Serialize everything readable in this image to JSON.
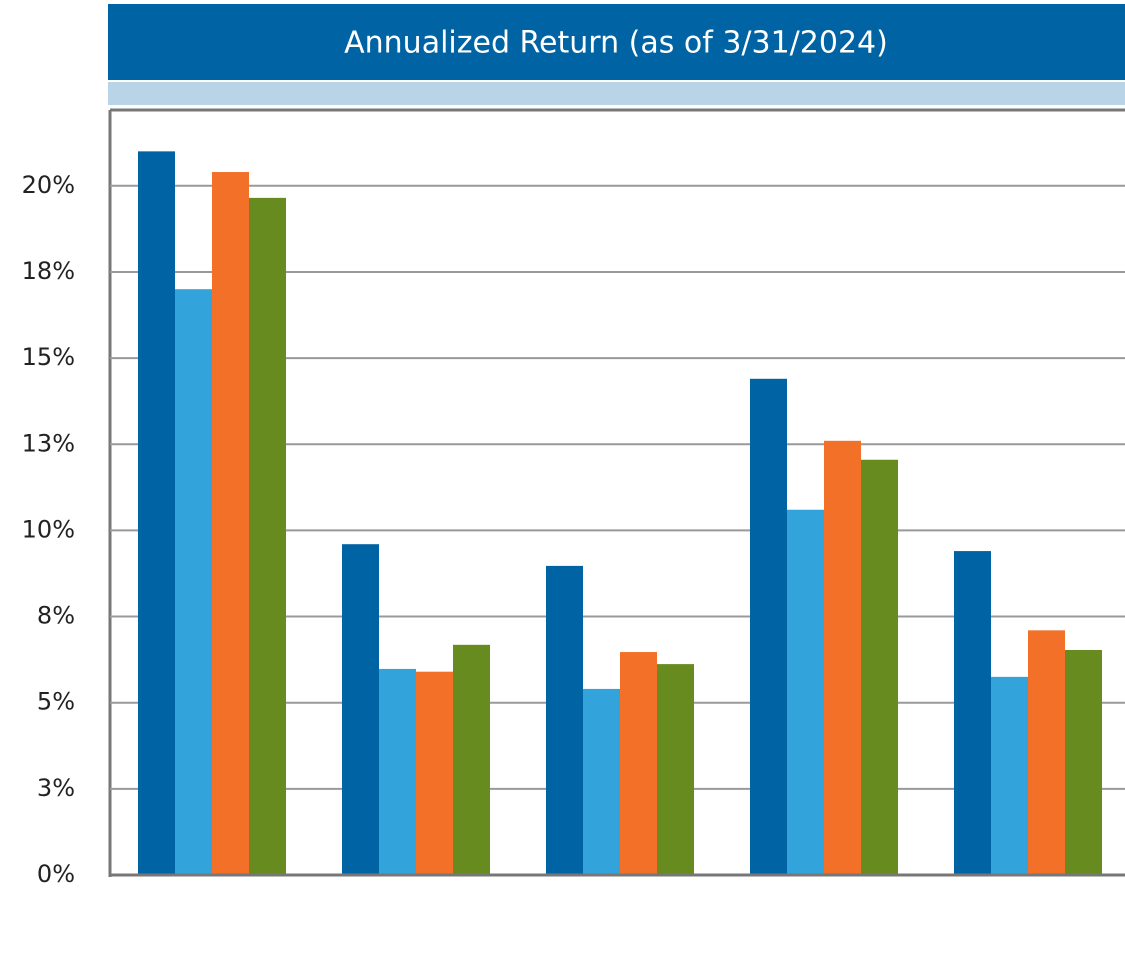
{
  "chart_data": {
    "type": "bar",
    "title": "Annualized Return (as of 3/31/2024)",
    "categories": [
      null,
      null,
      null,
      null,
      null
    ],
    "series": [
      {
        "color": "#0063a3",
        "values": [
          21.0,
          9.6,
          8.97,
          14.4,
          9.4
        ]
      },
      {
        "color": "#33a3dc",
        "values": [
          17.0,
          5.98,
          5.4,
          10.6,
          5.75
        ]
      },
      {
        "color": "#f37029",
        "values": [
          20.4,
          5.9,
          6.47,
          12.6,
          7.1
        ]
      },
      {
        "color": "#678b1e",
        "values": [
          19.65,
          6.68,
          6.12,
          12.05,
          6.53
        ]
      }
    ],
    "ylim": [
      0,
      22.2
    ],
    "yticks": [
      {
        "value": 0,
        "label": "0%"
      },
      {
        "value": 2.5,
        "label": "3%"
      },
      {
        "value": 5,
        "label": "5%"
      },
      {
        "value": 7.5,
        "label": "8%"
      },
      {
        "value": 10,
        "label": "10%"
      },
      {
        "value": 12.5,
        "label": "13%"
      },
      {
        "value": 15,
        "label": "15%"
      },
      {
        "value": 17.5,
        "label": "18%"
      },
      {
        "value": 20,
        "label": "20%"
      }
    ],
    "grid": true
  }
}
